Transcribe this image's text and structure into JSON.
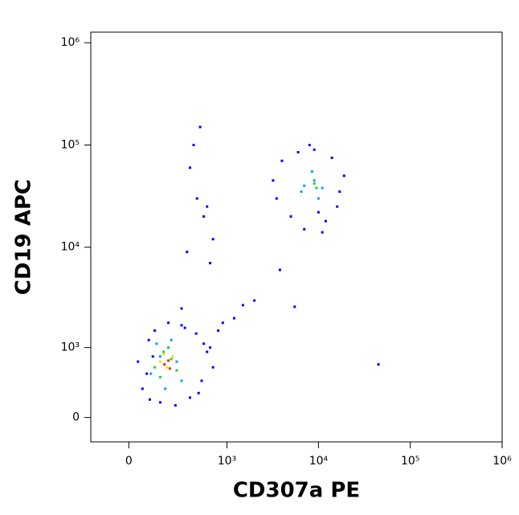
{
  "chart_data": {
    "type": "scatter",
    "xlabel": "CD307a PE",
    "ylabel": "CD19 APC",
    "xscale": "arcsinh",
    "xcofactor": 172,
    "yscale": "arcsinh",
    "ycofactor": 433,
    "xlim": [
      -190,
      1000000
    ],
    "ylim": [
      -250,
      1270000
    ],
    "xticks": [
      0,
      {
        "value": 1000,
        "label": "10³"
      },
      {
        "value": 10000,
        "label": "10⁴"
      },
      {
        "value": 100000,
        "label": "10⁵"
      },
      {
        "value": 1000000,
        "label": "10⁶"
      }
    ],
    "yticks": [
      0,
      {
        "value": 1000,
        "label": "10³"
      },
      {
        "value": 10000,
        "label": "10⁴"
      },
      {
        "value": 100000,
        "label": "10⁵"
      },
      {
        "value": 1000000,
        "label": "10⁶"
      }
    ],
    "series": [
      {
        "color": "#0000ff",
        "x": [
          60,
          90,
          120,
          300,
          450,
          600,
          80,
          520,
          700,
          150,
          380,
          250,
          110,
          550,
          40,
          200,
          330,
          480,
          650,
          95,
          3500,
          5000,
          7000,
          12000,
          16000,
          19000,
          4000,
          14000,
          9000,
          6000,
          11000,
          3200,
          17000,
          8000,
          10000,
          500,
          420,
          380,
          460,
          600,
          550,
          700,
          1500,
          1200,
          900,
          2000,
          45000,
          5500,
          3800,
          800,
          300,
          350,
          650
        ],
        "values": [
          300,
          1200,
          1500,
          1700,
          1400,
          900,
          500,
          400,
          600,
          150,
          200,
          120,
          800,
          1100,
          700,
          1800,
          1600,
          250,
          1000,
          180,
          30000,
          20000,
          15000,
          18000,
          25000,
          50000,
          70000,
          75000,
          90000,
          85000,
          14000,
          45000,
          35000,
          100000,
          22000,
          150000,
          100000,
          60000,
          30000,
          25000,
          20000,
          12000,
          2700,
          2000,
          1800,
          3000,
          650,
          2600,
          6000,
          1500,
          2500,
          9000,
          7000
        ]
      },
      {
        "color": "#00a0ff",
        "x": [
          100,
          150,
          200,
          260,
          300,
          130,
          220,
          180,
          7000,
          9000,
          11000,
          8500,
          10000,
          6500
        ],
        "values": [
          500,
          800,
          1000,
          700,
          400,
          1100,
          1200,
          300,
          40000,
          45000,
          38000,
          55000,
          30000,
          35000
        ]
      },
      {
        "color": "#20d040",
        "x": [
          120,
          170,
          220,
          260,
          150,
          200,
          9000,
          9500
        ],
        "values": [
          600,
          900,
          750,
          550,
          450,
          1000,
          42000,
          38000
        ]
      },
      {
        "color": "#f0e000",
        "x": [
          150,
          190,
          230,
          170
        ],
        "values": [
          700,
          600,
          800,
          850
        ]
      },
      {
        "color": "#ff2000",
        "x": [
          175,
          200,
          210
        ],
        "values": [
          650,
          720,
          580
        ]
      }
    ]
  }
}
